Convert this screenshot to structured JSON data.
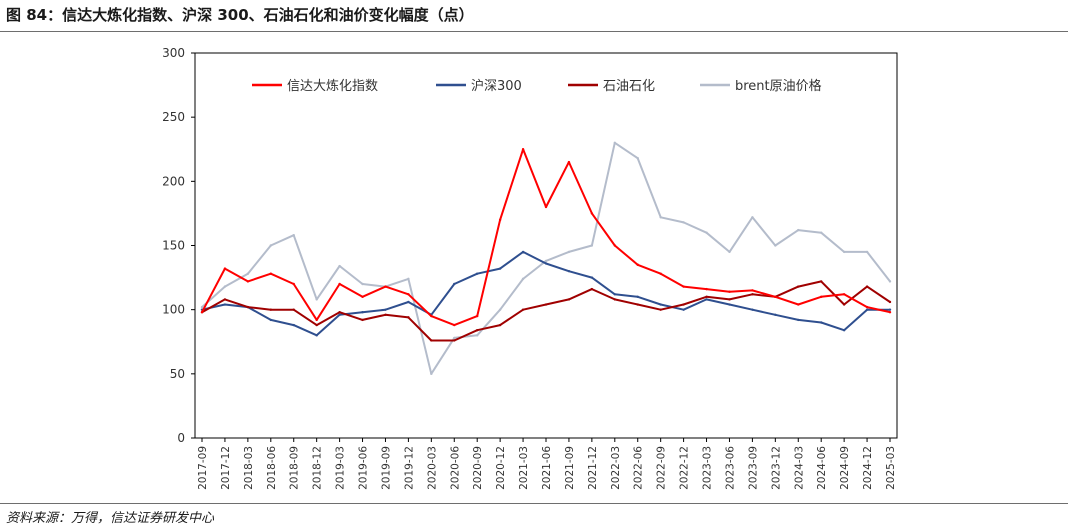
{
  "title": "图 84：信达大炼化指数、沪深 300、石油石化和油价变化幅度（点）",
  "source": "资料来源：万得，信达证券研发中心",
  "chart_data": {
    "type": "line",
    "xlabel": "",
    "ylabel": "",
    "ylim": [
      0,
      300
    ],
    "yticks": [
      0,
      50,
      100,
      150,
      200,
      250,
      300
    ],
    "grid": false,
    "legend_position": "top",
    "x": [
      "2017-09",
      "2017-12",
      "2018-03",
      "2018-06",
      "2018-09",
      "2018-12",
      "2019-03",
      "2019-06",
      "2019-09",
      "2019-12",
      "2020-03",
      "2020-06",
      "2020-09",
      "2020-12",
      "2021-03",
      "2021-06",
      "2021-09",
      "2021-12",
      "2022-03",
      "2022-06",
      "2022-09",
      "2022-12",
      "2023-03",
      "2023-06",
      "2023-09",
      "2023-12",
      "2024-03",
      "2024-06",
      "2024-09",
      "2024-12",
      "2025-03"
    ],
    "series": [
      {
        "name": "信达大炼化指数",
        "color": "#ff0000",
        "values": [
          98,
          132,
          122,
          128,
          120,
          92,
          120,
          110,
          118,
          112,
          95,
          88,
          95,
          170,
          225,
          180,
          215,
          175,
          150,
          135,
          128,
          118,
          116,
          114,
          115,
          110,
          104,
          110,
          112,
          102,
          98
        ]
      },
      {
        "name": "沪深300",
        "color": "#2f4f8f",
        "values": [
          100,
          104,
          102,
          92,
          88,
          80,
          96,
          98,
          100,
          106,
          96,
          120,
          128,
          132,
          145,
          136,
          130,
          125,
          112,
          110,
          104,
          100,
          108,
          104,
          100,
          96,
          92,
          90,
          84,
          100,
          100
        ]
      },
      {
        "name": "石油石化",
        "color": "#a00000",
        "values": [
          98,
          108,
          102,
          100,
          100,
          88,
          98,
          92,
          96,
          94,
          76,
          76,
          84,
          88,
          100,
          104,
          108,
          116,
          108,
          104,
          100,
          104,
          110,
          108,
          112,
          110,
          118,
          122,
          104,
          118,
          106
        ]
      },
      {
        "name": "brent原油价格",
        "color": "#b4bccb",
        "values": [
          102,
          118,
          128,
          150,
          158,
          108,
          134,
          120,
          118,
          124,
          50,
          78,
          80,
          100,
          124,
          138,
          145,
          150,
          230,
          218,
          172,
          168,
          160,
          145,
          172,
          150,
          162,
          160,
          145,
          145,
          122
        ]
      }
    ]
  }
}
